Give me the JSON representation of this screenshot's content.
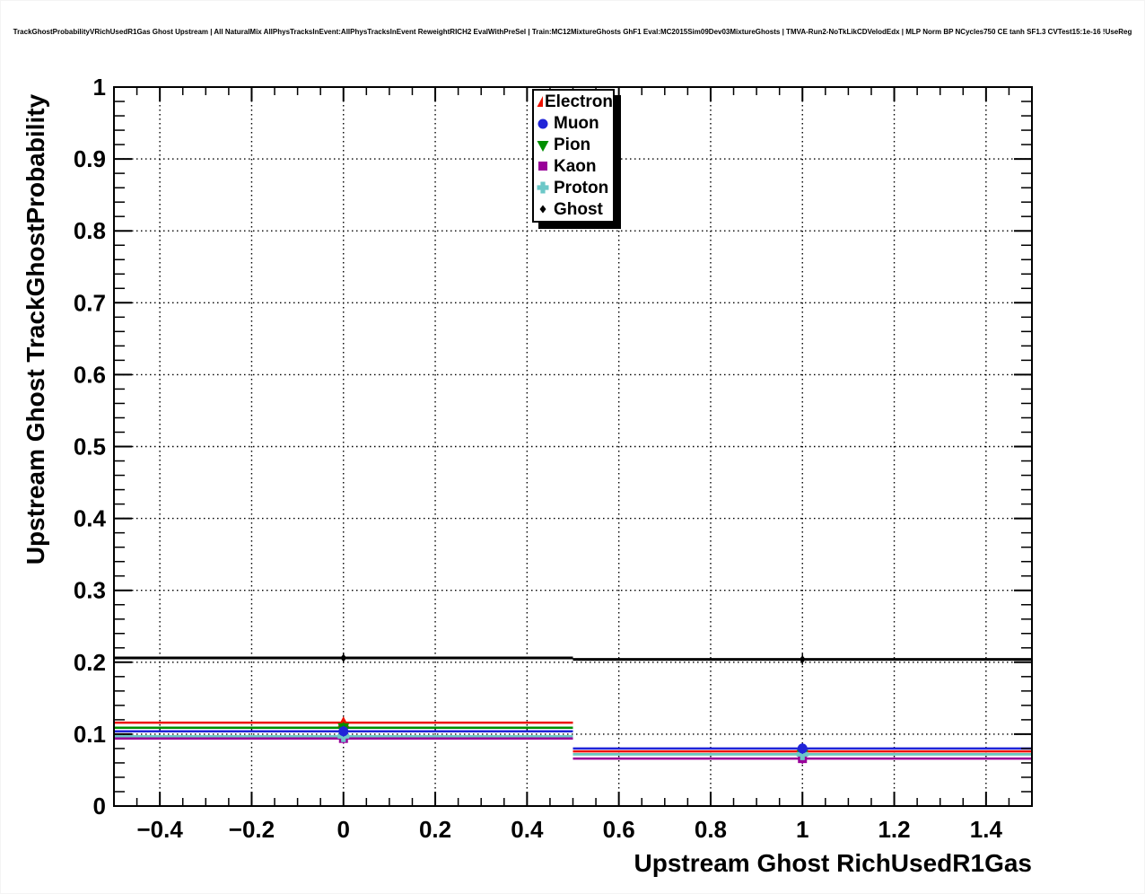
{
  "title": {
    "text": "TrackGhostProbabilityVRichUsedR1Gas Ghost Upstream | All NaturalMix AllPhysTracksInEvent:AllPhysTracksInEvent ReweightRICH2 EvalWithPreSel | Train:MC12MixtureGhosts GhF1 Eval:MC2015Sim09Dev03MixtureGhosts | TMVA-Run2-NoTkLikCDVelodEdx | MLP Norm BP NCycles750 CE tanh SF1.3 CVTest15:1e-16 !UseReg"
  },
  "chart_data": {
    "type": "line",
    "title": "",
    "xlabel": "Upstream Ghost RichUsedR1Gas",
    "ylabel": "Upstream Ghost TrackGhostProbability",
    "xlim": [
      -0.5,
      1.5
    ],
    "ylim": [
      0,
      1
    ],
    "grid": true,
    "grid_style": "dotted",
    "legend_position": "top-center",
    "x_bin_edges": [
      -0.5,
      0.5,
      1.5
    ],
    "x_bin_centers": [
      0,
      1
    ],
    "x_ticks": {
      "values": [
        -0.4,
        -0.2,
        0,
        0.2,
        0.4,
        0.6,
        0.8,
        1.0,
        1.2,
        1.4
      ],
      "labels": [
        "−0.4",
        "−0.2",
        "0",
        "0.2",
        "0.4",
        "0.6",
        "0.8",
        "1",
        "1.2",
        "1.4"
      ],
      "minor_step": 0.05
    },
    "y_ticks": {
      "values": [
        0,
        0.1,
        0.2,
        0.3,
        0.4,
        0.5,
        0.6,
        0.7,
        0.8,
        0.9,
        1.0
      ],
      "labels": [
        "0",
        "0.1",
        "0.2",
        "0.3",
        "0.4",
        "0.5",
        "0.6",
        "0.7",
        "0.8",
        "0.9",
        "1"
      ],
      "minor_step": 0.02
    },
    "series": [
      {
        "name": "Electron",
        "color": "#ee1100",
        "marker": "triangle-up",
        "values": [
          0.116,
          0.076
        ]
      },
      {
        "name": "Muon",
        "color": "#2024d8",
        "marker": "circle",
        "values": [
          0.104,
          0.08
        ]
      },
      {
        "name": "Pion",
        "color": "#008f00",
        "marker": "triangle-down",
        "values": [
          0.109,
          0.072
        ]
      },
      {
        "name": "Kaon",
        "color": "#990099",
        "marker": "square",
        "values": [
          0.094,
          0.066
        ]
      },
      {
        "name": "Proton",
        "color": "#6cc8c8",
        "marker": "cross",
        "values": [
          0.097,
          0.072
        ]
      },
      {
        "name": "Ghost",
        "color": "#000000",
        "marker": "diamond",
        "values": [
          0.206,
          0.204
        ]
      }
    ],
    "draw_order": [
      "Electron",
      "Pion",
      "Kaon",
      "Proton",
      "Muon",
      "Ghost"
    ]
  },
  "colors": {
    "frame": "#000000",
    "grid": "#000000",
    "background": "#ffffff",
    "legend_border": "#000000",
    "legend_shadow": "#000000"
  }
}
